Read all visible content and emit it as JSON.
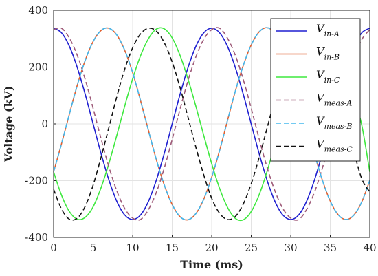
{
  "chart_data": {
    "type": "line",
    "xlabel": "Time (ms)",
    "ylabel": "Voltage (kV)",
    "xlim": [
      0,
      40
    ],
    "ylim": [
      -400,
      400
    ],
    "xticks": [
      "0",
      "5",
      "10",
      "15",
      "20",
      "25",
      "30",
      "35",
      "40"
    ],
    "yticks": [
      "400",
      "200",
      "0",
      "-200",
      "-400"
    ],
    "grid": true,
    "legend_position": "top-right",
    "x": [
      0,
      1,
      2,
      3,
      4,
      5,
      6,
      7,
      8,
      9,
      10,
      11,
      12,
      13,
      14,
      15,
      16,
      17,
      18,
      19,
      20,
      21,
      22,
      23,
      24,
      25,
      26,
      27,
      28,
      29,
      30,
      31,
      32,
      33,
      34,
      35,
      36,
      37,
      38,
      39,
      40
    ],
    "series": [
      {
        "name": "V",
        "subscript": "in-A",
        "color": "#1f1fd0",
        "dash": "solid",
        "values": [
          337,
          321,
          273,
          198,
          104,
          0,
          -104,
          -198,
          -273,
          -321,
          -337,
          -321,
          -273,
          -198,
          -104,
          0,
          104,
          198,
          273,
          321,
          337,
          321,
          273,
          198,
          104,
          0,
          -104,
          -198,
          -273,
          -321,
          -337,
          -321,
          -273,
          -198,
          -104,
          0,
          104,
          198,
          273,
          321,
          337
        ]
      },
      {
        "name": "V",
        "subscript": "in-B",
        "color": "#e06030",
        "dash": "solid",
        "values": [
          -169,
          -70,
          35,
          137,
          224,
          290,
          329,
          337,
          313,
          259,
          181,
          82,
          -23,
          -126,
          -215,
          -284,
          -327,
          -338,
          -316,
          -265,
          -188,
          -94,
          12,
          116,
          206,
          278,
          324,
          339,
          320,
          271,
          196,
          103,
          -1,
          -105,
          -198,
          -272,
          -320,
          -337,
          -321,
          -274,
          -199
        ]
      },
      {
        "name": "V",
        "subscript": "in-C",
        "color": "#3ee83e",
        "dash": "solid",
        "values": [
          -169,
          -251,
          -309,
          -336,
          -329,
          -292,
          -225,
          -139,
          -40,
          63,
          159,
          240,
          300,
          334,
          335,
          303,
          241,
          158,
          62,
          -41,
          -140,
          -227,
          -294,
          -333,
          -338,
          -309,
          -250,
          -168,
          -71,
          33,
          133,
          220,
          287,
          326,
          337,
          317,
          267,
          192,
          98,
          -6,
          -169
        ]
      },
      {
        "name": "V",
        "subscript": "meas-A",
        "color": "#9e5a78",
        "dash": "dashed",
        "values": [
          332,
          337,
          302,
          241,
          156,
          55,
          -52,
          -152,
          -236,
          -298,
          -332,
          -337,
          -302,
          -241,
          -156,
          -55,
          52,
          152,
          236,
          298,
          332,
          337,
          302,
          241,
          156,
          55,
          -52,
          -152,
          -236,
          -298,
          -332,
          -337,
          -302,
          -241,
          -156,
          -55,
          52,
          152,
          236,
          298,
          332
        ]
      },
      {
        "name": "V",
        "subscript": "meas-B",
        "color": "#44b8ee",
        "dash": "dashed",
        "values": [
          -169,
          -70,
          35,
          137,
          224,
          290,
          329,
          337,
          313,
          259,
          181,
          82,
          -23,
          -126,
          -215,
          -284,
          -327,
          -338,
          -316,
          -265,
          -188,
          -94,
          12,
          116,
          206,
          278,
          324,
          339,
          320,
          271,
          196,
          103,
          -1,
          -105,
          -198,
          -272,
          -320,
          -337,
          -321,
          -274,
          -199
        ]
      },
      {
        "name": "V",
        "subscript": "meas-C",
        "color": "#111111",
        "dash": "dashed",
        "values": [
          -230,
          -300,
          -336,
          -332,
          -290,
          -216,
          -118,
          -12,
          96,
          193,
          268,
          317,
          337,
          327,
          286,
          218,
          128,
          24,
          -82,
          -180,
          -262,
          -315,
          -337,
          -326,
          -282,
          -211,
          -119,
          -16,
          89,
          186,
          265,
          316,
          336,
          322,
          276,
          203,
          110,
          6,
          -99,
          -194,
          -240
        ]
      }
    ]
  }
}
